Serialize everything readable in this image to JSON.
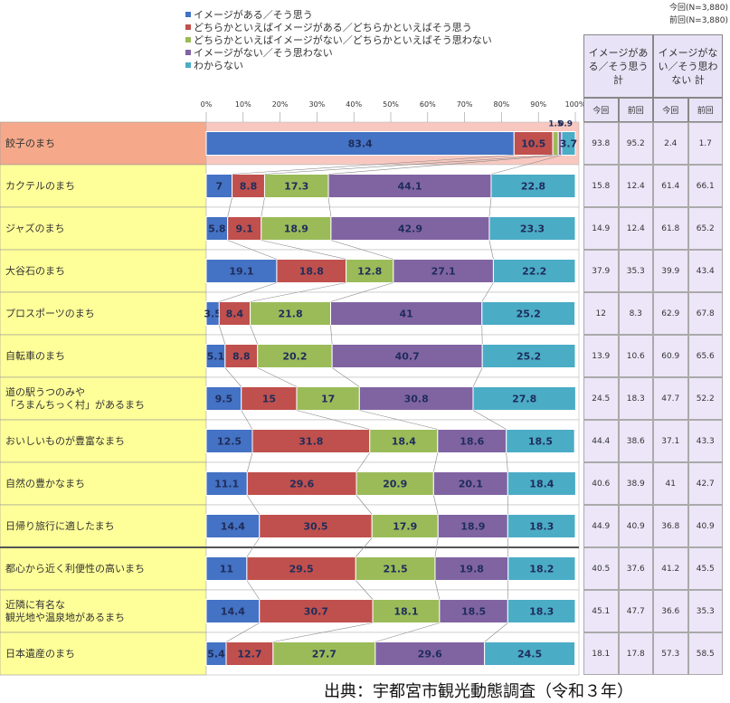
{
  "chart_data": {
    "type": "stacked-bar",
    "categories": [
      "餃子のまち",
      "カクテルのまち",
      "ジャズのまち",
      "大谷石のまち",
      "プロスポーツのまち",
      "自転車のまち",
      "道の駅うつのみや\n「ろまんちっく村」があるまち",
      "おいしいものが豊富なまち",
      "自然の豊かなまち",
      "日帰り旅行に適したまち",
      "都心から近く利便性の高いまち",
      "近隣に有名な\n観光地や温泉地があるまち",
      "日本遺産のまち"
    ],
    "series": [
      {
        "name": "イメージがある／そう思う",
        "color": "#4472c4",
        "values": [
          83.4,
          7.0,
          5.8,
          19.1,
          3.5,
          5.1,
          9.5,
          12.5,
          11.1,
          14.4,
          11.0,
          14.4,
          5.4
        ]
      },
      {
        "name": "どちらかといえばイメージがある／どちらかといえばそう思う",
        "color": "#c0504d",
        "values": [
          10.5,
          8.8,
          9.1,
          18.8,
          8.4,
          8.8,
          15.0,
          31.8,
          29.6,
          30.5,
          29.5,
          30.7,
          12.7
        ]
      },
      {
        "name": "どちらかといえばイメージがない／どちらかといえばそう思わない",
        "color": "#9bbb59",
        "values": [
          1.5,
          17.3,
          18.9,
          12.8,
          21.8,
          20.2,
          17.0,
          18.4,
          20.9,
          17.9,
          21.5,
          18.1,
          27.7
        ]
      },
      {
        "name": "イメージがない／そう思わない",
        "color": "#8064a2",
        "values": [
          0.9,
          44.1,
          42.9,
          27.1,
          41.0,
          40.7,
          30.8,
          18.6,
          20.1,
          18.9,
          19.8,
          18.5,
          29.6
        ]
      },
      {
        "name": "わからない",
        "color": "#4bacc6",
        "values": [
          3.7,
          22.8,
          23.3,
          22.2,
          25.2,
          25.2,
          27.8,
          18.5,
          18.4,
          18.3,
          18.2,
          18.3,
          24.5
        ]
      }
    ],
    "xlim": [
      0,
      100
    ],
    "xticks": [
      {
        "value": 0,
        "label": "0%"
      },
      {
        "value": 10,
        "label": "10%"
      },
      {
        "value": 20,
        "label": "20%"
      },
      {
        "value": 30,
        "label": "30%"
      },
      {
        "value": 40,
        "label": "40%"
      },
      {
        "value": 50,
        "label": "50%"
      },
      {
        "value": 60,
        "label": "60%"
      },
      {
        "value": 70,
        "label": "70%"
      },
      {
        "value": 80,
        "label": "80%"
      },
      {
        "value": 90,
        "label": "90%"
      },
      {
        "value": 100,
        "label": "100%"
      }
    ]
  },
  "table": {
    "notes": [
      "今回(N=3,880)",
      "前回(N=3,880)"
    ],
    "headers": [
      "イメージがある／そう思う 計",
      "イメージがない／そう思わない 計"
    ],
    "subheaders": [
      "今回",
      "前回",
      "今回",
      "前回"
    ],
    "rows": [
      [
        93.8,
        95.2,
        2.4,
        1.7
      ],
      [
        15.8,
        12.4,
        61.4,
        66.1
      ],
      [
        14.9,
        12.4,
        61.8,
        65.2
      ],
      [
        37.9,
        35.3,
        39.9,
        43.4
      ],
      [
        12.0,
        8.3,
        62.9,
        67.8
      ],
      [
        13.9,
        10.6,
        60.9,
        65.6
      ],
      [
        24.5,
        18.3,
        47.7,
        52.2
      ],
      [
        44.4,
        38.6,
        37.1,
        43.3
      ],
      [
        40.6,
        38.9,
        41.0,
        42.7
      ],
      [
        44.9,
        40.9,
        36.8,
        40.9
      ],
      [
        40.5,
        37.6,
        41.2,
        45.5
      ],
      [
        45.1,
        47.7,
        36.6,
        35.3
      ],
      [
        18.1,
        17.8,
        57.3,
        58.5
      ]
    ]
  },
  "source": "出典：宇都宮市観光動態調査（令和３年）"
}
